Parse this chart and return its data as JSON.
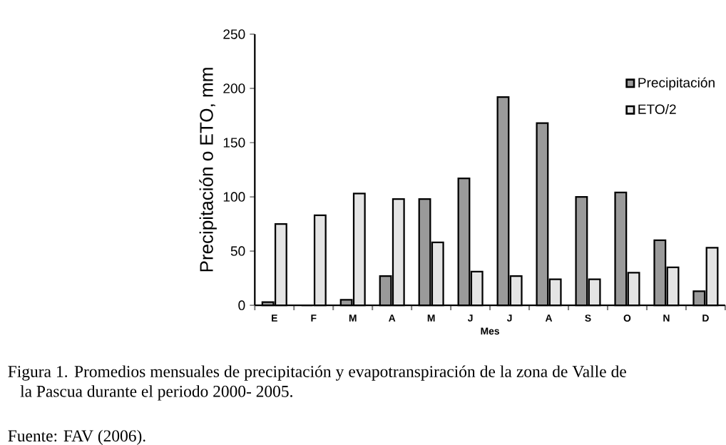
{
  "chart_data": {
    "type": "bar",
    "categories": [
      "E",
      "F",
      "M",
      "A",
      "M",
      "J",
      "J",
      "A",
      "S",
      "O",
      "N",
      "D"
    ],
    "series": [
      {
        "name": "Precipitación",
        "color": "#9a9a9a",
        "values": [
          3,
          0,
          5,
          27,
          98,
          117,
          192,
          168,
          100,
          104,
          60,
          13
        ]
      },
      {
        "name": "ETO/2",
        "color": "#e4e4e4",
        "values": [
          75,
          83,
          103,
          98,
          58,
          31,
          27,
          24,
          24,
          30,
          35,
          53
        ]
      }
    ],
    "xlabel": "Mes",
    "ylabel": "Precipitación o ETO, mm",
    "ylim": [
      0,
      250
    ],
    "yticks": [
      0,
      50,
      100,
      150,
      200,
      250
    ],
    "legend": "top right",
    "grid": false,
    "annotations": [
      "Figura 1. Promedios mensuales de precipitación y evapotranspiración de la zona de Valle de la Pascua durante el periodo 2000- 2005.",
      "Fuente: FAV (2006)."
    ]
  }
}
